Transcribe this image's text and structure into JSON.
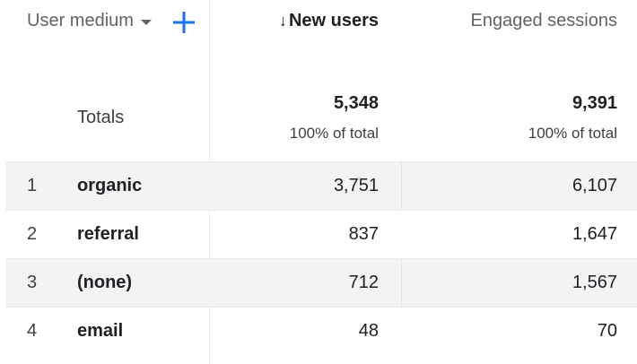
{
  "header": {
    "dimension_label": "User medium",
    "new_users_label": "New users",
    "sort_arrow": "↓",
    "engaged_sessions_label": "Engaged sessions"
  },
  "totals": {
    "label": "Totals",
    "new_users": "5,348",
    "new_users_pct": "100% of total",
    "engaged_sessions": "9,391",
    "engaged_sessions_pct": "100% of total"
  },
  "rows": [
    {
      "index": "1",
      "medium": "organic",
      "new_users": "3,751",
      "engaged_sessions": "6,107"
    },
    {
      "index": "2",
      "medium": "referral",
      "new_users": "837",
      "engaged_sessions": "1,647"
    },
    {
      "index": "3",
      "medium": "(none)",
      "new_users": "712",
      "engaged_sessions": "1,567"
    },
    {
      "index": "4",
      "medium": "email",
      "new_users": "48",
      "engaged_sessions": "70"
    }
  ],
  "colors": {
    "accent": "#1a73e8",
    "row_shade": "#f1f3f4",
    "divider": "#e8eaed"
  }
}
